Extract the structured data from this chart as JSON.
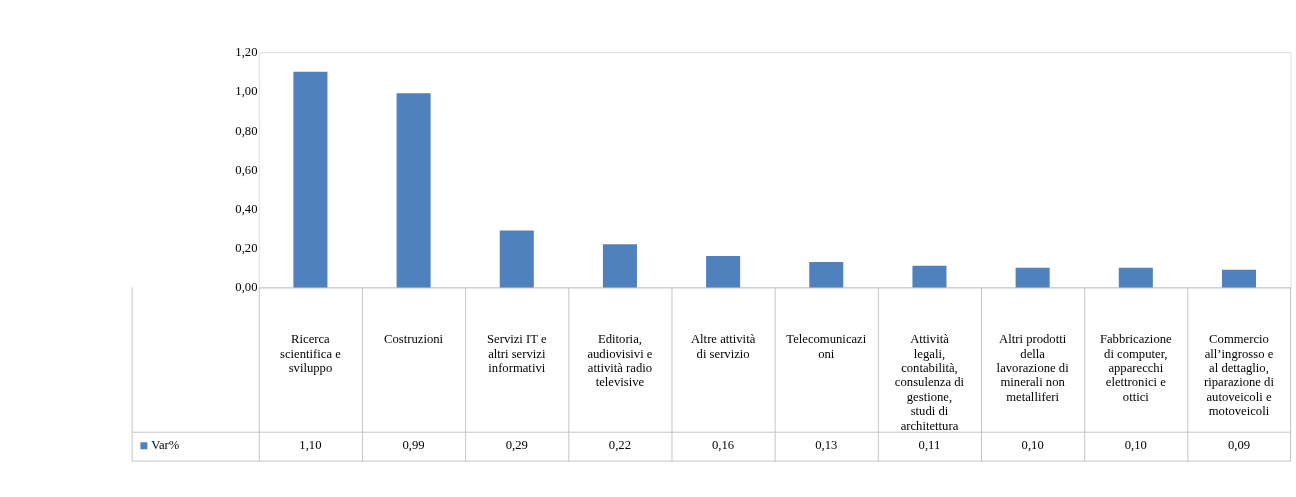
{
  "chart_data": {
    "type": "bar",
    "categories": [
      "Ricerca scientifica e sviluppo",
      "Costruzioni",
      "Servizi IT e altri servizi informativi",
      "Editoria, audiovisivi e attività radiotelevisive",
      "Altre attività di servizio",
      "Telecomunicazioni",
      "Attività legali, contabilità, consulenza di gestione, studi di architettura",
      "Altri prodotti della lavorazione di minerali non metalliferi",
      "Fabbricazione di computer, apparecchi elettronici e ottici",
      "Commercio all’ingrosso e al dettaglio, riparazione di autoveicoli e motoveicoli"
    ],
    "series": [
      {
        "name": "Var%",
        "color": "#4f81bd",
        "values": [
          1.1,
          0.99,
          0.29,
          0.22,
          0.16,
          0.13,
          0.11,
          0.1,
          0.1,
          0.09
        ],
        "value_labels": [
          "1,10",
          "0,99",
          "0,29",
          "0,22",
          "0,16",
          "0,13",
          "0,11",
          "0,10",
          "0,10",
          "0,09"
        ]
      }
    ],
    "ylim": [
      0,
      1.2
    ],
    "yticks": [
      {
        "value": 0,
        "label": "0,00"
      },
      {
        "value": 0.2,
        "label": "0,20"
      },
      {
        "value": 0.4,
        "label": "0,40"
      },
      {
        "value": 0.6,
        "label": "0,60"
      },
      {
        "value": 0.8,
        "label": "0,80"
      },
      {
        "value": 1.0,
        "label": "1,00"
      },
      {
        "value": 1.2,
        "label": "1,20"
      }
    ],
    "grid": false,
    "legend": "bottom left"
  }
}
